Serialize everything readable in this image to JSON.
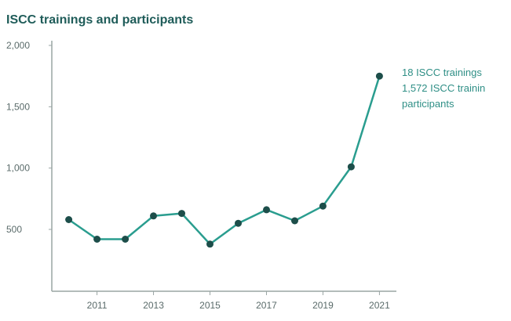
{
  "chart_data": {
    "type": "line",
    "title": "ISCC trainings and participants",
    "xlabel": "",
    "ylabel": "",
    "x": [
      2010,
      2011,
      2012,
      2013,
      2014,
      2015,
      2016,
      2017,
      2018,
      2019,
      2020,
      2021
    ],
    "x_tick_labels": [
      "2011",
      "2013",
      "2015",
      "2017",
      "2019",
      "2021"
    ],
    "y_tick_labels": [
      "500",
      "1,000",
      "1,500",
      "2,000"
    ],
    "y_ticks": [
      500,
      1000,
      1500,
      2000
    ],
    "ylim": [
      0,
      2000
    ],
    "series": [
      {
        "values": [
          580,
          420,
          420,
          610,
          630,
          380,
          550,
          660,
          570,
          690,
          1010,
          1750
        ],
        "color": "#2a9d8f"
      }
    ],
    "annotation": {
      "lines": [
        "18 ISCC trainings",
        "1,572 ISCC trainin",
        "participants"
      ]
    },
    "grid": false,
    "colors": {
      "line": "#2a9d8f",
      "marker": "#1d4e4a",
      "axis": "#9aa5a4",
      "title": "#1f5c59",
      "annotation": "#2f8f86"
    }
  }
}
